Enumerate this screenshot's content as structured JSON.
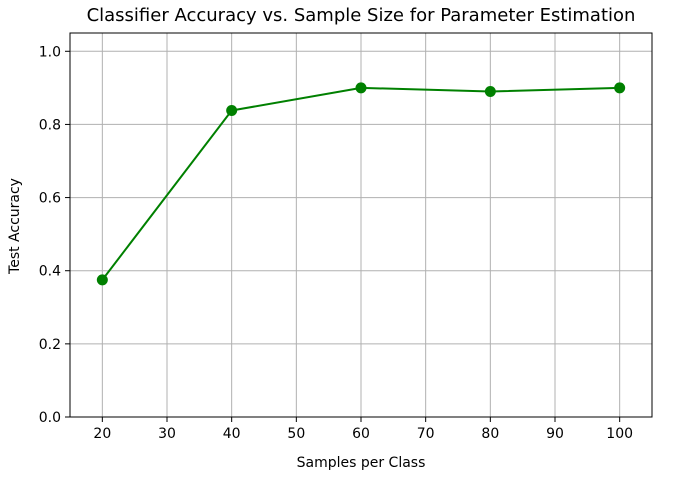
{
  "chart_data": {
    "type": "line",
    "title": "Classifier Accuracy vs. Sample Size for Parameter Estimation",
    "xlabel": "Samples per Class",
    "ylabel": "Test Accuracy",
    "xlim": [
      15,
      105
    ],
    "ylim": [
      0.0,
      1.05
    ],
    "x_ticks": [
      20,
      30,
      40,
      50,
      60,
      70,
      80,
      90,
      100
    ],
    "x_tick_labels": [
      "20",
      "30",
      "40",
      "50",
      "60",
      "70",
      "80",
      "90",
      "100"
    ],
    "y_ticks": [
      0.0,
      0.2,
      0.4,
      0.6,
      0.8,
      1.0
    ],
    "y_tick_labels": [
      "0.0",
      "0.2",
      "0.4",
      "0.6",
      "0.8",
      "1.0"
    ],
    "grid": true,
    "series": [
      {
        "x": [
          20,
          40,
          60,
          80,
          100
        ],
        "values": [
          0.375,
          0.838,
          0.9,
          0.89,
          0.9
        ],
        "color": "#008000",
        "marker": "circle"
      }
    ]
  },
  "colors": {
    "grid": "#b0b0b0",
    "axes": "#000000",
    "background": "#ffffff"
  }
}
